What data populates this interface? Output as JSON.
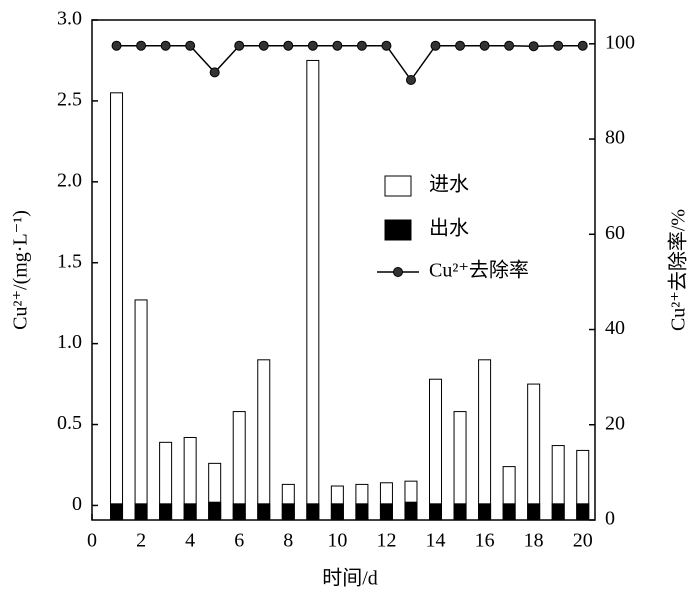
{
  "chart_data": {
    "type": "bar",
    "x_label": "时间/d",
    "y_label": "Cu²⁺/(mg·L⁻¹)",
    "y2_label": "Cu²⁺去除率/%",
    "x": [
      1,
      2,
      3,
      4,
      5,
      6,
      7,
      8,
      9,
      10,
      11,
      12,
      13,
      14,
      15,
      16,
      17,
      18,
      19,
      20
    ],
    "series": [
      {
        "name": "进水",
        "color": "#ffffff",
        "type": "bar",
        "values": [
          2.55,
          1.27,
          0.39,
          0.42,
          0.26,
          0.58,
          0.9,
          0.13,
          2.75,
          0.12,
          0.13,
          0.14,
          0.15,
          0.78,
          0.58,
          0.9,
          0.24,
          0.75,
          0.37,
          0.34
        ]
      },
      {
        "name": "出水",
        "color": "#000000",
        "type": "bar",
        "values": [
          0.01,
          0.01,
          0.01,
          0.01,
          0.02,
          0.01,
          0.01,
          0.01,
          0.01,
          0.01,
          0.01,
          0.01,
          0.02,
          0.01,
          0.01,
          0.01,
          0.01,
          0.01,
          0.01,
          0.01
        ]
      },
      {
        "name": "Cu²⁺去除率",
        "color": "#000000",
        "type": "line",
        "axis": "y2",
        "values": [
          99.6,
          99.6,
          99.6,
          99.6,
          94,
          99.6,
          99.6,
          99.6,
          99.6,
          99.6,
          99.6,
          99.6,
          92.4,
          99.6,
          99.6,
          99.6,
          99.6,
          99.5,
          99.6,
          99.6
        ]
      }
    ],
    "xlim": [
      0,
      20.5
    ],
    "xticks": [
      0,
      2,
      4,
      6,
      8,
      10,
      12,
      14,
      16,
      18,
      20
    ],
    "ylim": [
      -0.09,
      3.0
    ],
    "yticks": [
      0,
      0.5,
      {
        "value": 1,
        "label": "1.0"
      },
      1.5,
      {
        "value": 2,
        "label": "2.0"
      },
      2.5,
      {
        "value": 3,
        "label": "3.0"
      }
    ],
    "y2lim": [
      0,
      105
    ],
    "y2ticks": [
      0,
      20,
      40,
      60,
      80,
      100
    ]
  }
}
